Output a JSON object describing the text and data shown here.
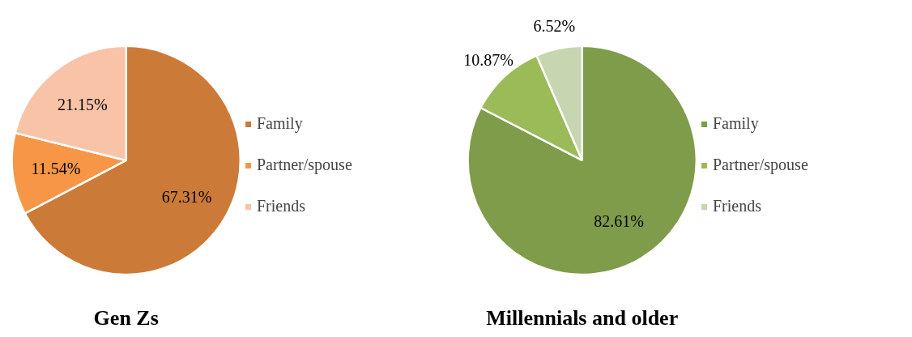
{
  "chart_data": [
    {
      "type": "pie",
      "title": "Gen Zs",
      "categories": [
        "Family",
        "Partner/spouse",
        "Friends"
      ],
      "values": [
        67.31,
        11.54,
        21.15
      ],
      "colors": [
        "#cc7a38",
        "#f79646",
        "#f9c3a8"
      ],
      "value_labels": [
        "67.31%",
        "11.54%",
        "21.15%"
      ],
      "legend": "right"
    },
    {
      "type": "pie",
      "title": "Millennials and older",
      "categories": [
        "Family",
        "Partner/spouse",
        "Friends"
      ],
      "values": [
        82.61,
        10.87,
        6.52
      ],
      "colors": [
        "#7f9c4a",
        "#9bbb59",
        "#c6d6b0"
      ],
      "value_labels": [
        "82.61%",
        "10.87%",
        "6.52%"
      ],
      "legend": "right"
    }
  ]
}
